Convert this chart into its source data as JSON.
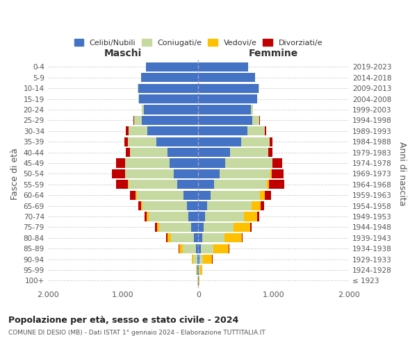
{
  "age_groups": [
    "100+",
    "95-99",
    "90-94",
    "85-89",
    "80-84",
    "75-79",
    "70-74",
    "65-69",
    "60-64",
    "55-59",
    "50-54",
    "45-49",
    "40-44",
    "35-39",
    "30-34",
    "25-29",
    "20-24",
    "15-19",
    "10-14",
    "5-9",
    "0-4"
  ],
  "birth_years": [
    "≤ 1923",
    "1924-1928",
    "1929-1933",
    "1934-1938",
    "1939-1943",
    "1944-1948",
    "1949-1953",
    "1954-1958",
    "1959-1963",
    "1964-1968",
    "1969-1973",
    "1974-1978",
    "1979-1983",
    "1984-1988",
    "1989-1993",
    "1994-1998",
    "1999-2003",
    "2004-2008",
    "2009-2013",
    "2014-2018",
    "2019-2023"
  ],
  "male_celibi": [
    5,
    10,
    15,
    30,
    60,
    100,
    130,
    150,
    200,
    280,
    330,
    380,
    410,
    560,
    680,
    750,
    720,
    790,
    800,
    760,
    700
  ],
  "male_coniugati": [
    5,
    15,
    50,
    180,
    300,
    420,
    530,
    590,
    620,
    650,
    640,
    590,
    500,
    380,
    250,
    100,
    30,
    10,
    5,
    0,
    0
  ],
  "male_vedovi": [
    0,
    5,
    20,
    40,
    50,
    30,
    25,
    20,
    10,
    5,
    5,
    0,
    0,
    0,
    0,
    5,
    0,
    0,
    0,
    0,
    0
  ],
  "male_divorziati": [
    0,
    0,
    5,
    10,
    15,
    30,
    30,
    40,
    80,
    160,
    170,
    120,
    50,
    40,
    30,
    5,
    0,
    0,
    0,
    0,
    0
  ],
  "female_celibi": [
    5,
    10,
    15,
    30,
    50,
    70,
    90,
    120,
    160,
    210,
    280,
    360,
    420,
    570,
    650,
    720,
    700,
    780,
    800,
    750,
    660
  ],
  "female_coniugati": [
    3,
    10,
    50,
    170,
    300,
    400,
    520,
    590,
    660,
    700,
    680,
    620,
    510,
    380,
    230,
    90,
    25,
    5,
    5,
    0,
    0
  ],
  "female_vedovi": [
    5,
    30,
    120,
    200,
    230,
    220,
    170,
    120,
    60,
    30,
    15,
    5,
    0,
    0,
    0,
    0,
    0,
    0,
    0,
    0,
    0
  ],
  "female_divorziati": [
    0,
    0,
    5,
    10,
    10,
    20,
    30,
    40,
    90,
    200,
    160,
    130,
    50,
    30,
    20,
    5,
    0,
    0,
    0,
    0,
    0
  ],
  "colors": {
    "celibi": "#4472c4",
    "coniugati": "#c5d9a0",
    "vedovi": "#ffc000",
    "divorziati": "#c00000"
  },
  "title1": "Popolazione per età, sesso e stato civile - 2024",
  "title2": "COMUNE DI DESIO (MB) - Dati ISTAT 1° gennaio 2024 - Elaborazione TUTTITALIA.IT",
  "xlabel_left": "Maschi",
  "xlabel_right": "Femmine",
  "ylabel_left": "Fasce di età",
  "ylabel_right": "Anni di nascita",
  "xlim": 2000,
  "bg_color": "#ffffff",
  "grid_color": "#cccccc",
  "legend_labels": [
    "Celibi/Nubili",
    "Coniugati/e",
    "Vedovi/e",
    "Divorziati/e"
  ]
}
